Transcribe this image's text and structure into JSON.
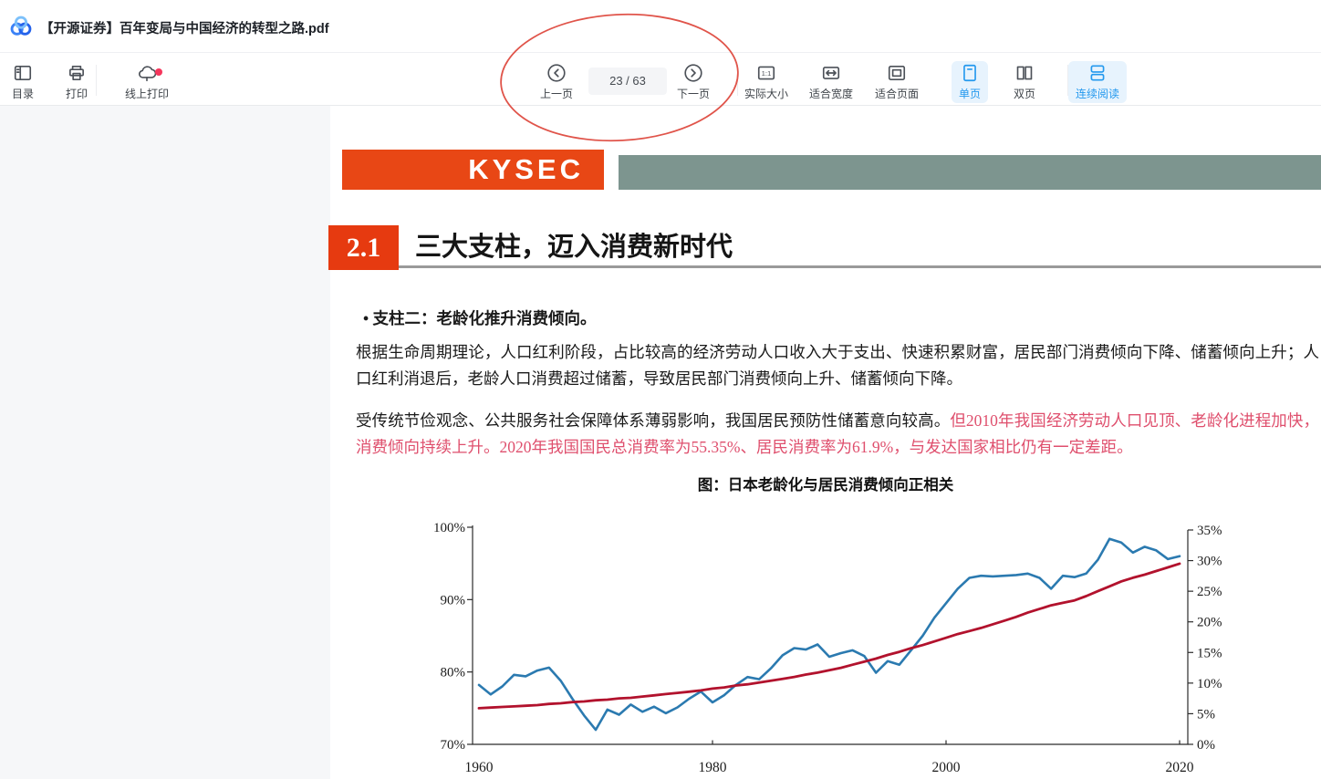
{
  "window": {
    "title": "【开源证券】百年变局与中国经济的转型之路.pdf"
  },
  "toolbar": {
    "toc_label": "目录",
    "print_label": "打印",
    "online_print_label": "线上打印",
    "prev_label": "上一页",
    "page_indicator": "23 / 63",
    "next_label": "下一页",
    "actual_size_label": "实际大小",
    "fit_width_label": "适合宽度",
    "fit_page_label": "适合页面",
    "single_page_label": "单页",
    "double_page_label": "双页",
    "continuous_label": "连续阅读",
    "icon_1_1_text": "1:1"
  },
  "colors": {
    "accent": "#2499ee",
    "accent_bg": "#e7f3fd",
    "notification_dot": "#f5365c",
    "annotation_red": "#e0544a",
    "logo_red": "#e84715",
    "section_red": "#e63a10",
    "sage_bar": "#7d958f",
    "doc_red_text": "#df4f6d",
    "line_blue": "#2b7ab0",
    "line_red": "#b2122d"
  },
  "document": {
    "logo_text": "KYSEC",
    "section_no": "2.1",
    "section_title": "三大支柱，迈入消费新时代",
    "bullet_marker": "•",
    "bullet_text": "支柱二：老龄化推升消费倾向。",
    "para1": "根据生命周期理论，人口红利阶段，占比较高的经济劳动人口收入大于支出、快速积累财富，居民部门消费倾向下降、储蓄倾向上升；人口红利消退后，老龄人口消费超过储蓄，导致居民部门消费倾向上升、储蓄倾向下降。",
    "para2_black": "受传统节俭观念、公共服务社会保障体系薄弱影响，我国居民预防性储蓄意向较高。",
    "para2_red": "但2010年我国经济劳动人口见顶、老龄化进程加快，消费倾向持续上升。2020年我国国民总消费率为55.35%、居民消费率为61.9%，与发达国家相比仍有一定差距。",
    "chart_caption": "图：日本老龄化与居民消费倾向正相关"
  },
  "chart_data": {
    "type": "line",
    "title": "图：日本老龄化与居民消费倾向正相关",
    "x": {
      "start": 1960,
      "end": 2020,
      "step": 1
    },
    "x_axis": {
      "labels": [
        "1960",
        "1980",
        "2000",
        "2020"
      ],
      "values": [
        1960,
        1980,
        2000,
        2020
      ],
      "tick_marks": [
        1980,
        2000,
        2020
      ]
    },
    "left_axis": {
      "min": 70,
      "max": 100,
      "labels": [
        "100%",
        "90%",
        "80%",
        "70%"
      ],
      "values": [
        100,
        90,
        80,
        70
      ]
    },
    "right_axis": {
      "min": 0,
      "max": 35,
      "labels": [
        "35%",
        "30%",
        "25%",
        "20%",
        "15%",
        "10%",
        "5%",
        "0%"
      ],
      "values": [
        35,
        30,
        25,
        20,
        15,
        10,
        5,
        0
      ]
    },
    "grid": false,
    "legend": "none",
    "series": [
      {
        "name": "blue-line-left-axis",
        "axis": "left",
        "color": "#2b7ab0",
        "values": [
          78.2,
          76.9,
          78.0,
          79.6,
          79.4,
          80.2,
          80.6,
          78.8,
          76.3,
          74.0,
          72.0,
          74.8,
          74.1,
          75.5,
          74.5,
          75.2,
          74.3,
          75.1,
          76.3,
          77.3,
          75.8,
          76.8,
          78.2,
          79.3,
          79.0,
          80.5,
          82.3,
          83.3,
          83.1,
          83.8,
          82.1,
          82.6,
          83.0,
          82.2,
          79.9,
          81.5,
          81.0,
          83.0,
          85.0,
          87.5,
          89.5,
          91.5,
          93.0,
          93.3,
          93.2,
          93.3,
          93.4,
          93.6,
          93.0,
          91.5,
          93.3,
          93.1,
          93.6,
          95.5,
          98.4,
          97.9,
          96.5,
          97.3,
          96.8,
          95.6,
          96.0
        ]
      },
      {
        "name": "red-line-right-axis",
        "axis": "right",
        "color": "#b2122d",
        "values": [
          5.9,
          6.0,
          6.1,
          6.2,
          6.3,
          6.4,
          6.6,
          6.7,
          6.9,
          7.0,
          7.2,
          7.3,
          7.5,
          7.6,
          7.8,
          8.0,
          8.2,
          8.4,
          8.6,
          8.8,
          9.1,
          9.3,
          9.6,
          9.8,
          10.1,
          10.4,
          10.7,
          11.0,
          11.4,
          11.7,
          12.1,
          12.5,
          13.0,
          13.5,
          14.0,
          14.6,
          15.1,
          15.7,
          16.2,
          16.8,
          17.4,
          18.0,
          18.5,
          19.0,
          19.6,
          20.2,
          20.8,
          21.5,
          22.1,
          22.7,
          23.1,
          23.5,
          24.2,
          25.0,
          25.8,
          26.6,
          27.2,
          27.7,
          28.3,
          28.9,
          29.5
        ]
      }
    ]
  }
}
